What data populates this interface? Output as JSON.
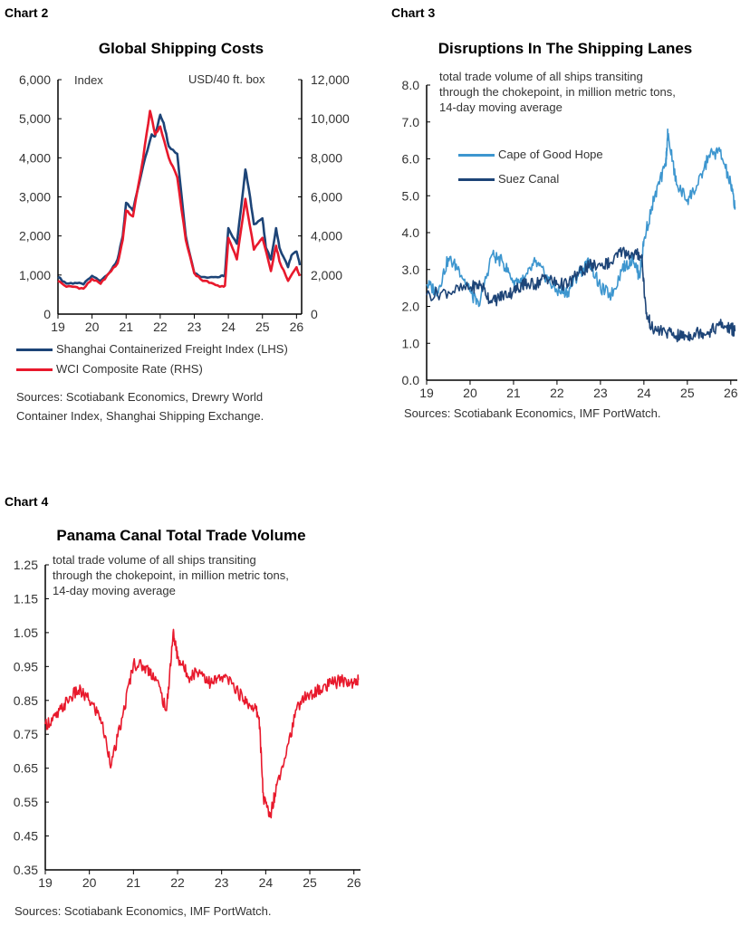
{
  "colors": {
    "navy": "#1d4477",
    "red": "#e8192c",
    "lightblue": "#3d96cf"
  },
  "chart_data": [
    {
      "id": "chart2",
      "label": "Chart 2",
      "title": "Global Shipping Costs",
      "type": "line",
      "left_axis_label": "Index",
      "right_axis_label": "USD/40 ft. box",
      "xlim": [
        19,
        26.15
      ],
      "xticks": [
        "19",
        "20",
        "21",
        "22",
        "23",
        "24",
        "25",
        "26"
      ],
      "ylim": [
        0,
        6000
      ],
      "yticks": [
        "0",
        "1,000",
        "2,000",
        "3,000",
        "4,000",
        "5,000",
        "6,000"
      ],
      "y2lim": [
        0,
        12000
      ],
      "y2ticks": [
        "0",
        "2,000",
        "4,000",
        "6,000",
        "8,000",
        "10,000",
        "12,000"
      ],
      "series": [
        {
          "name": "Shanghai Containerized Freight Index (LHS)",
          "axis": "left",
          "color": "#1d4477",
          "x": [
            19.0,
            19.25,
            19.5,
            19.75,
            20.0,
            20.25,
            20.5,
            20.75,
            20.9,
            21.0,
            21.2,
            21.5,
            21.75,
            21.85,
            22.0,
            22.1,
            22.25,
            22.5,
            22.75,
            23.0,
            23.25,
            23.5,
            23.75,
            23.9,
            24.0,
            24.25,
            24.5,
            24.6,
            24.75,
            25.0,
            25.1,
            25.25,
            25.4,
            25.5,
            25.75,
            25.85,
            26.0,
            26.1
          ],
          "values": [
            950,
            780,
            800,
            760,
            980,
            850,
            1050,
            1400,
            2000,
            2850,
            2650,
            3800,
            4600,
            4550,
            5100,
            4900,
            4300,
            4100,
            2000,
            1050,
            950,
            950,
            950,
            1000,
            2200,
            1800,
            3700,
            3200,
            2300,
            2450,
            1700,
            1400,
            2200,
            1700,
            1200,
            1500,
            1600,
            1250
          ]
        },
        {
          "name": "WCI Composite Rate (RHS)",
          "axis": "right",
          "color": "#e8192c",
          "x": [
            19.0,
            19.25,
            19.5,
            19.75,
            20.0,
            20.25,
            20.5,
            20.75,
            20.9,
            21.0,
            21.2,
            21.5,
            21.7,
            21.85,
            22.0,
            22.25,
            22.5,
            22.75,
            23.0,
            23.25,
            23.5,
            23.75,
            23.9,
            24.0,
            24.25,
            24.5,
            24.75,
            25.0,
            25.25,
            25.4,
            25.5,
            25.75,
            26.0,
            26.1
          ],
          "values": [
            1700,
            1400,
            1400,
            1300,
            1800,
            1550,
            2100,
            2600,
            3800,
            5300,
            5000,
            8000,
            10400,
            9200,
            9600,
            8000,
            7000,
            3800,
            2100,
            1700,
            1600,
            1400,
            1450,
            3900,
            2800,
            5900,
            3300,
            3900,
            2200,
            3500,
            2700,
            1700,
            2400,
            1950
          ]
        }
      ],
      "sources": [
        "Sources: Scotiabank Economics, Drewry World",
        "Container Index, Shanghai Shipping Exchange."
      ]
    },
    {
      "id": "chart3",
      "label": "Chart 3",
      "title": "Disruptions In The Shipping Lanes",
      "type": "line",
      "note": [
        "total trade volume of all ships transiting",
        "through the chokepoint, in million metric tons,",
        "14-day moving average"
      ],
      "xlim": [
        19,
        26.15
      ],
      "xticks": [
        "19",
        "20",
        "21",
        "22",
        "23",
        "24",
        "25",
        "26"
      ],
      "ylim": [
        0,
        8
      ],
      "yticks": [
        "0.0",
        "1.0",
        "2.0",
        "3.0",
        "4.0",
        "5.0",
        "6.0",
        "7.0",
        "8.0"
      ],
      "series": [
        {
          "name": "Cape of Good Hope",
          "color": "#3d96cf",
          "x": [
            19.0,
            19.25,
            19.5,
            19.75,
            20.0,
            20.2,
            20.5,
            20.75,
            21.0,
            21.25,
            21.5,
            21.75,
            22.0,
            22.25,
            22.5,
            22.75,
            23.0,
            23.25,
            23.5,
            23.75,
            23.9,
            24.0,
            24.25,
            24.5,
            24.55,
            24.75,
            25.0,
            25.25,
            25.5,
            25.75,
            26.0,
            26.1
          ],
          "values": [
            2.6,
            2.4,
            3.3,
            3.0,
            2.4,
            2.0,
            3.4,
            3.2,
            2.7,
            2.7,
            3.2,
            2.8,
            2.4,
            2.4,
            2.9,
            3.2,
            2.5,
            2.3,
            3.0,
            3.3,
            2.8,
            3.8,
            5.0,
            5.8,
            6.7,
            5.3,
            4.9,
            5.3,
            6.1,
            6.2,
            5.3,
            4.7
          ]
        },
        {
          "name": "Suez Canal",
          "color": "#1d4477",
          "x": [
            19.0,
            19.5,
            20.0,
            20.25,
            20.5,
            20.75,
            21.0,
            21.2,
            21.25,
            21.5,
            21.75,
            22.0,
            22.25,
            22.5,
            22.75,
            23.0,
            23.25,
            23.5,
            23.75,
            23.95,
            24.05,
            24.2,
            24.5,
            24.75,
            25.0,
            25.25,
            25.5,
            25.75,
            26.0,
            26.1
          ],
          "values": [
            2.3,
            2.4,
            2.5,
            2.6,
            2.1,
            2.3,
            2.4,
            2.6,
            2.6,
            2.6,
            2.8,
            2.6,
            2.6,
            2.9,
            3.1,
            3.1,
            3.2,
            3.5,
            3.4,
            3.4,
            1.8,
            1.4,
            1.3,
            1.2,
            1.2,
            1.3,
            1.3,
            1.5,
            1.4,
            1.35
          ]
        }
      ],
      "sources": [
        "Sources: Scotiabank Economics, IMF PortWatch."
      ]
    },
    {
      "id": "chart4",
      "label": "Chart 4",
      "title": "Panama Canal Total Trade Volume",
      "type": "line",
      "note": [
        "total trade volume of all ships transiting",
        "through the chokepoint, in million metric tons,",
        "14-day moving average"
      ],
      "xlim": [
        19,
        26.15
      ],
      "xticks": [
        "19",
        "20",
        "21",
        "22",
        "23",
        "24",
        "25",
        "26"
      ],
      "ylim": [
        0.35,
        1.25
      ],
      "yticks": [
        "0.35",
        "0.45",
        "0.55",
        "0.65",
        "0.75",
        "0.85",
        "0.95",
        "1.05",
        "1.15",
        "1.25"
      ],
      "series": [
        {
          "color": "#e8192c",
          "x": [
            19.0,
            19.25,
            19.5,
            19.75,
            20.0,
            20.25,
            20.5,
            20.75,
            21.0,
            21.25,
            21.5,
            21.75,
            21.9,
            22.0,
            22.25,
            22.5,
            22.75,
            23.0,
            23.25,
            23.5,
            23.75,
            23.85,
            23.95,
            24.1,
            24.25,
            24.5,
            24.75,
            25.0,
            25.25,
            25.5,
            25.75,
            26.0,
            26.1
          ],
          "values": [
            0.78,
            0.8,
            0.85,
            0.88,
            0.85,
            0.8,
            0.66,
            0.8,
            0.96,
            0.95,
            0.92,
            0.82,
            1.05,
            0.98,
            0.92,
            0.94,
            0.9,
            0.92,
            0.9,
            0.85,
            0.83,
            0.8,
            0.56,
            0.51,
            0.6,
            0.72,
            0.84,
            0.87,
            0.88,
            0.9,
            0.91,
            0.9,
            0.91
          ]
        }
      ],
      "sources": [
        "Sources: Scotiabank Economics, IMF PortWatch."
      ]
    }
  ]
}
